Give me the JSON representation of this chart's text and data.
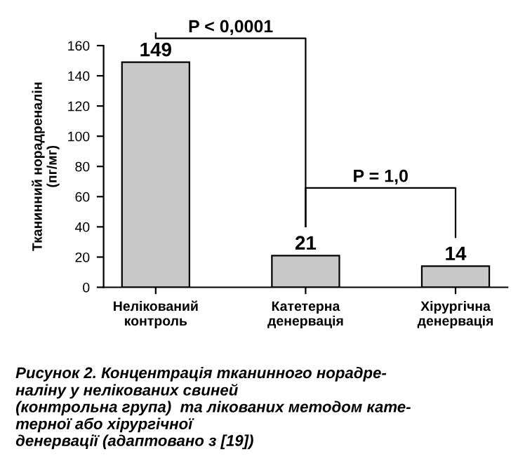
{
  "chart_data": {
    "type": "bar",
    "ylabel": "Тканинний норадреналін\n(пг/мг)",
    "categories": [
      "Нелікований\nконтроль",
      "Катетерна\nденервація",
      "Хірургічна\nденервація"
    ],
    "values": [
      149,
      21,
      14
    ],
    "color": "#c8c8c8",
    "data_labels": true,
    "ylim": [
      0,
      160
    ],
    "yticks": [
      0,
      20,
      40,
      60,
      80,
      100,
      120,
      140,
      160
    ],
    "grid": false,
    "legend": false,
    "annotations": [
      "P < 0,0001",
      "P = 1,0",
      "Рисунок 2. Концентрація тканинного норадре-\nналіну у нелікованих свиней\n(контрольна група)  та лікованих методом кате-\nтерної або хірургічної\nденервації (адаптовано з [19])"
    ]
  }
}
